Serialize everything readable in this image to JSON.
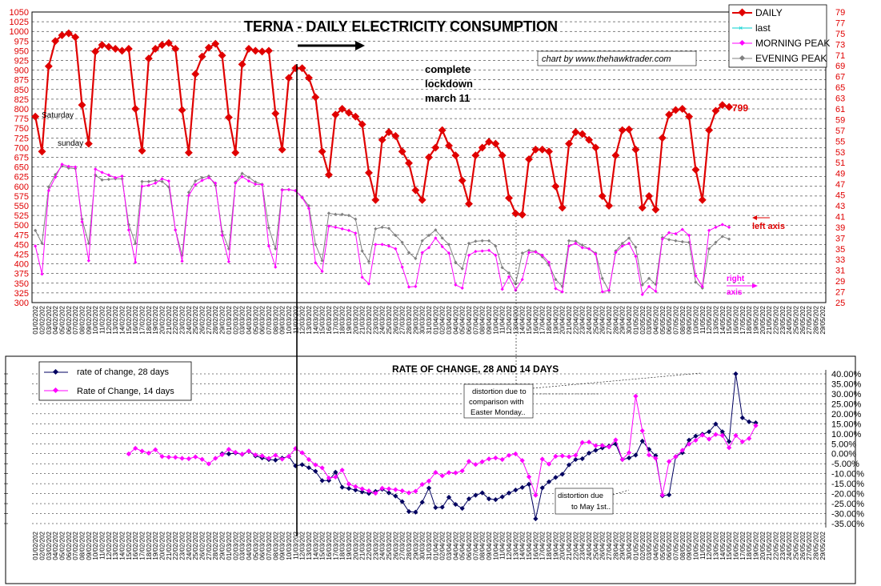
{
  "chart_data": [
    {
      "type": "line",
      "title": "TERNA  - DAILY ELECTRICITY CONSUMPTION",
      "credit": "chart by www.thehawktrader.com",
      "y_left": {
        "ylim": [
          300,
          1050
        ],
        "step": 25,
        "ticks": [
          300,
          325,
          350,
          375,
          400,
          425,
          450,
          475,
          500,
          525,
          550,
          575,
          600,
          625,
          650,
          675,
          700,
          725,
          750,
          775,
          800,
          825,
          850,
          875,
          900,
          925,
          950,
          975,
          1000,
          1025,
          1050
        ]
      },
      "y_right": {
        "ylim": [
          25,
          79
        ],
        "step": 2,
        "ticks": [
          25,
          27,
          29,
          31,
          33,
          35,
          37,
          39,
          41,
          43,
          45,
          47,
          49,
          51,
          53,
          55,
          57,
          59,
          61,
          63,
          65,
          67,
          69,
          71,
          73,
          75,
          77,
          79
        ]
      },
      "grid": true,
      "legend_position": "top-right",
      "x_dates": [
        "01/02/202",
        "02/02/202",
        "03/02/202",
        "04/02/202",
        "05/02/202",
        "06/02/202",
        "07/02/202",
        "08/02/202",
        "09/02/202",
        "10/02/202",
        "11/02/202",
        "12/02/202",
        "13/02/202",
        "14/02/202",
        "15/02/202",
        "16/02/202",
        "17/02/202",
        "18/02/202",
        "19/02/202",
        "20/02/202",
        "21/02/202",
        "22/02/202",
        "23/02/202",
        "24/02/202",
        "25/02/202",
        "26/02/202",
        "27/02/202",
        "28/02/202",
        "29/02/202",
        "01/03/202",
        "02/03/202",
        "03/03/202",
        "04/03/202",
        "05/03/202",
        "06/03/202",
        "07/03/202",
        "08/03/202",
        "09/03/202",
        "10/03/202",
        "11/03/202",
        "12/03/202",
        "13/03/202",
        "14/03/202",
        "15/03/202",
        "16/03/202",
        "17/03/202",
        "18/03/202",
        "19/03/202",
        "20/03/202",
        "21/03/202",
        "22/03/202",
        "23/03/202",
        "24/03/202",
        "25/03/202",
        "26/03/202",
        "27/03/202",
        "28/03/202",
        "29/03/202",
        "30/03/202",
        "31/03/202",
        "01/04/202",
        "02/04/202",
        "03/04/202",
        "04/04/202",
        "05/04/202",
        "06/04/202",
        "07/04/202",
        "08/04/202",
        "09/04/202",
        "10/04/202",
        "11/04/202",
        "12/04/202",
        "13/04/202",
        "14/04/202",
        "15/04/202",
        "16/04/202",
        "17/04/202",
        "18/04/202",
        "19/04/202",
        "20/04/202",
        "21/04/202",
        "22/04/202",
        "23/04/202",
        "24/04/202",
        "25/04/202",
        "26/04/202",
        "27/04/202",
        "28/04/202",
        "29/04/202",
        "30/04/202",
        "01/05/202",
        "02/05/202",
        "03/05/202",
        "04/05/202",
        "05/05/202",
        "06/05/202",
        "07/05/202",
        "08/05/202",
        "09/05/202",
        "10/05/202",
        "11/05/202",
        "12/05/202",
        "13/05/202",
        "14/05/202",
        "15/05/202",
        "16/05/202",
        "17/05/202",
        "18/05/202",
        "19/05/202",
        "20/05/202",
        "21/05/202",
        "22/05/202",
        "23/05/202",
        "24/05/202",
        "25/05/202",
        "26/05/202",
        "27/05/202",
        "28/05/202",
        "29/05/202"
      ],
      "series": [
        {
          "name": "DAILY",
          "axis": "left",
          "color": "#e00000",
          "values": [
            780,
            690,
            910,
            975,
            990,
            995,
            985,
            810,
            710,
            948,
            965,
            960,
            955,
            950,
            955,
            800,
            692,
            930,
            955,
            965,
            970,
            955,
            797,
            687,
            890,
            935,
            958,
            968,
            938,
            778,
            687,
            915,
            955,
            950,
            948,
            950,
            788,
            695,
            880,
            905,
            905,
            880,
            830,
            690,
            630,
            785,
            800,
            790,
            780,
            760,
            635,
            565,
            720,
            740,
            730,
            690,
            660,
            590,
            565,
            675,
            700,
            745,
            705,
            680,
            615,
            555,
            680,
            700,
            715,
            710,
            680,
            570,
            530,
            527,
            670,
            695,
            695,
            690,
            600,
            545,
            710,
            740,
            735,
            720,
            700,
            575,
            550,
            680,
            745,
            747,
            695,
            545,
            575,
            540,
            725,
            785,
            797,
            800,
            780,
            643,
            565,
            745,
            795,
            810,
            805
          ]
        },
        {
          "name": "last",
          "axis": "left",
          "color": "#00d0d0",
          "values": []
        },
        {
          "name": "MORNING PEAK",
          "axis": "right",
          "color": "#ff00ff",
          "values": [
            35.5,
            30.3,
            45.8,
            48.3,
            50.7,
            50.3,
            50.2,
            40.0,
            32.8,
            49.8,
            49.2,
            48.7,
            48.2,
            48.5,
            38.5,
            32.5,
            46.6,
            46.8,
            47.2,
            48.0,
            47.6,
            38.5,
            32.7,
            44.9,
            46.9,
            47.7,
            48.2,
            47.2,
            37.5,
            32.6,
            47.2,
            48.4,
            47.6,
            47.0,
            46.9,
            35.5,
            31.6,
            45.9,
            46.0,
            45.8,
            44.5,
            42.5,
            32.4,
            30.8,
            39.2,
            39.0,
            38.7,
            38.4,
            37.9,
            29.7,
            28.5,
            35.8,
            35.8,
            35.5,
            35.0,
            31.6,
            27.9,
            28.0,
            34.3,
            35.2,
            37.0,
            35.4,
            34.2,
            28.3,
            27.7,
            33.8,
            34.5,
            34.6,
            34.7,
            33.8,
            27.5,
            29.8,
            27.3,
            29.3,
            34.3,
            34.4,
            33.8,
            32.5,
            27.6,
            27.0,
            35.5,
            36.0,
            35.2,
            35.0,
            34.0,
            27.0,
            27.3,
            34.3,
            35.5,
            36.0,
            33.6,
            26.5,
            28.0,
            27.1,
            36.8,
            38.0,
            37.8,
            38.6,
            37.5,
            30.0,
            28.0,
            38.4,
            39.0,
            39.5,
            39.0
          ]
        },
        {
          "name": "EVENING PEAK",
          "axis": "right",
          "color": "#808080",
          "values": [
            38.4,
            36.0,
            46.5,
            48.8,
            50.4,
            50.0,
            49.9,
            40.5,
            36.0,
            48.7,
            47.8,
            47.9,
            48.0,
            48.0,
            39.5,
            36.0,
            47.5,
            47.5,
            47.7,
            47.5,
            46.5,
            38.5,
            33.8,
            45.5,
            47.6,
            48.2,
            48.5,
            46.8,
            38.2,
            35.0,
            47.4,
            49.0,
            48.3,
            47.4,
            47.0,
            38.9,
            35.0,
            46.0,
            46.0,
            45.8,
            44.6,
            43.0,
            35.8,
            32.8,
            41.6,
            41.4,
            41.4,
            41.2,
            40.5,
            34.6,
            32.6,
            38.7,
            39.0,
            38.8,
            37.5,
            36.2,
            34.3,
            33.2,
            36.5,
            37.5,
            38.5,
            37.0,
            35.8,
            32.5,
            31.3,
            36.0,
            36.4,
            36.5,
            36.5,
            35.5,
            31.5,
            30.5,
            28.5,
            34.2,
            34.7,
            34.5,
            33.5,
            32.0,
            29.3,
            28.0,
            36.5,
            36.4,
            35.7,
            35.0,
            34.2,
            29.5,
            27.2,
            34.6,
            36.0,
            37.0,
            35.3,
            28.3,
            29.5,
            28.4,
            37.1,
            36.7,
            36.5,
            36.3,
            36.2,
            28.8,
            27.7,
            35.0,
            36.2,
            37.3,
            36.8
          ]
        }
      ],
      "annotations": {
        "saturday": "Saturday",
        "sunday": "sunday",
        "lockdown": [
          "complete",
          "lockdown",
          "march 11"
        ],
        "last_value": "799",
        "left_axis": "left  axis",
        "right_axis": [
          "right",
          "axis"
        ]
      }
    },
    {
      "type": "line",
      "title": "RATE OF CHANGE, 28 AND 14 DAYS",
      "y_right": {
        "ylim": [
          -35,
          40
        ],
        "step": 5,
        "ticks": [
          "40.00%",
          "35.00%",
          "30.00%",
          "25.00%",
          "20.00%",
          "15.00%",
          "10.00%",
          "5.00%",
          "0.00%",
          "-5.00%",
          "-10.00%",
          "-15.00%",
          "-20.00%",
          "-25.00%",
          "-30.00%",
          "-35.00%"
        ]
      },
      "legend_position": "top-left",
      "series": [
        {
          "name": "rate of change, 28 days",
          "color": "#000060",
          "start_index": 28,
          "values": [
            0.0,
            -0.1,
            0.4,
            -0.3,
            1.3,
            -1.1,
            -2.1,
            -2.9,
            -3.2,
            -2.2,
            -1.4,
            -6.1,
            -5.5,
            -7.0,
            -8.8,
            -13.5,
            -13.4,
            -9.3,
            -16.8,
            -17.4,
            -18.2,
            -19.1,
            -19.9,
            -18.9,
            -17.8,
            -19.6,
            -21.2,
            -24.0,
            -29.0,
            -29.3,
            -24.3,
            -17.2,
            -27.0,
            -26.8,
            -21.8,
            -25.4,
            -27.4,
            -22.6,
            -20.8,
            -19.6,
            -22.6,
            -23.0,
            -21.6,
            -19.7,
            -18.2,
            -16.9,
            -15.3,
            -32.6,
            -17.1,
            -14.1,
            -11.9,
            -10.3,
            -5.6,
            -2.9,
            -2.5,
            0.3,
            1.7,
            2.9,
            3.8,
            4.9,
            -2.9,
            -2.1,
            -0.7,
            6.3,
            2.2,
            -1.0,
            -21.1,
            -20.6,
            -1.5,
            0.5,
            6.8,
            8.8,
            9.8,
            11.0,
            14.9,
            11.0,
            6.1,
            40.0,
            18.0,
            16.0,
            15.5
          ]
        },
        {
          "name": "Rate of Change, 14 days",
          "color": "#ff00ff",
          "start_index": 14,
          "values": [
            -0.1,
            2.7,
            1.3,
            0.3,
            2.0,
            -1.4,
            -1.7,
            -1.8,
            -2.3,
            -2.5,
            -1.6,
            -2.8,
            -5.1,
            -2.3,
            -0.5,
            2.2,
            0.7,
            -0.2,
            1.3,
            -0.6,
            -1.1,
            -2.3,
            -0.8,
            -2.7,
            -1.3,
            2.6,
            0.5,
            -2.9,
            -5.6,
            -7.1,
            -12.2,
            -11.7,
            -8.2,
            -15.2,
            -16.5,
            -17.6,
            -18.6,
            -19.8,
            -17.3,
            -17.6,
            -18.0,
            -18.6,
            -19.6,
            -18.8,
            -15.4,
            -13.7,
            -9.4,
            -11.1,
            -9.5,
            -9.6,
            -8.6,
            -3.8,
            -5.4,
            -4.0,
            -2.6,
            -2.1,
            -2.9,
            -0.8,
            -0.1,
            -3.4,
            -11.6,
            -20.8,
            -2.7,
            -5.2,
            -1.3,
            -1.1,
            -1.5,
            -0.8,
            5.6,
            5.8,
            4.0,
            4.1,
            3.4,
            6.9,
            -2.9,
            0.5,
            28.8,
            11.5,
            -0.6,
            -2.3,
            -20.7,
            -3.9,
            -1.5,
            1.7,
            4.8,
            6.7,
            9.3,
            7.3,
            9.6,
            9.1,
            3.0,
            9.1,
            6.0,
            7.6,
            14.1
          ]
        }
      ],
      "annotations": {
        "easter": [
          "distortion due to",
          "comparison with",
          "Easter Monday.."
        ],
        "mayday": [
          "distortion due",
          "to May 1st.."
        ]
      }
    }
  ],
  "labels": {
    "legend_daily": "DAILY",
    "legend_last": "last",
    "legend_morning": "MORNING PEAK",
    "legend_evening": "EVENING PEAK",
    "legend_roc28": "rate of change, 28 days",
    "legend_roc14": "Rate of Change, 14 days"
  }
}
